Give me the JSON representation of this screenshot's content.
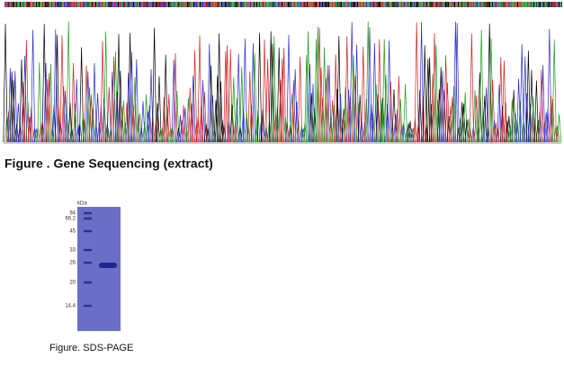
{
  "figures": [
    {
      "caption": "Figure . Gene Sequencing (extract)"
    },
    {
      "caption": "Figure. SDS-PAGE",
      "gel": {
        "unit": "kDa",
        "markers": [
          "94",
          "66.2",
          "45",
          "33",
          "26",
          "20",
          "14.4"
        ]
      }
    }
  ]
}
